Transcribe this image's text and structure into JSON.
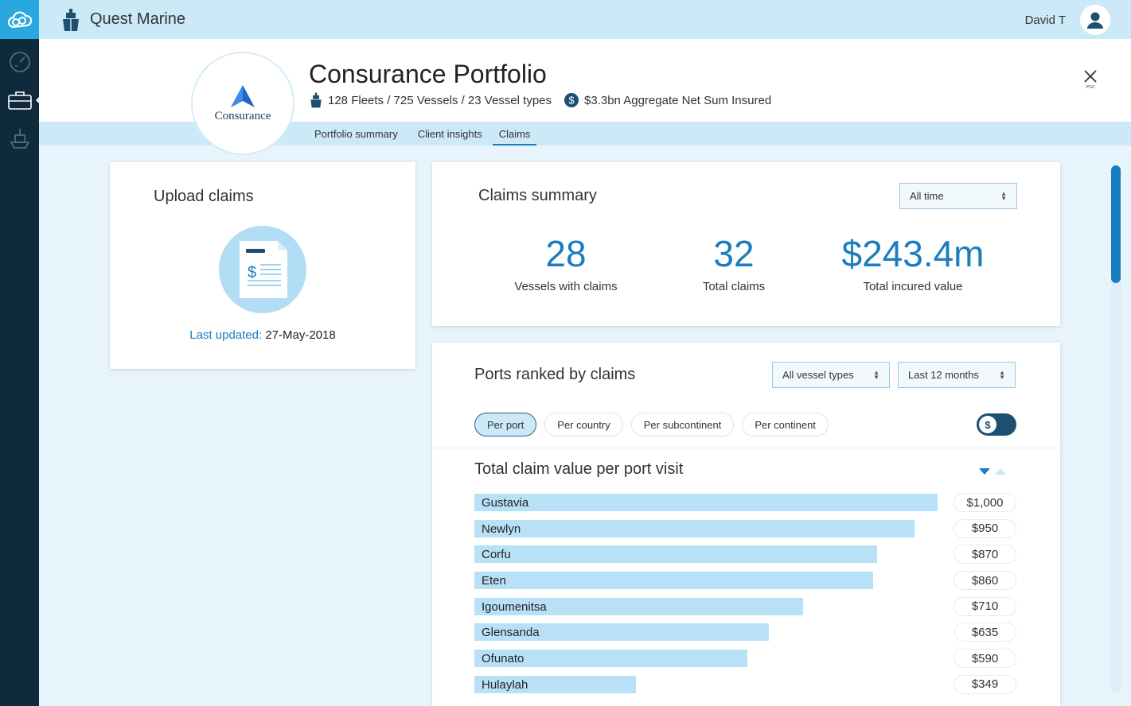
{
  "app": {
    "brand_name": "Quest Marine",
    "user_name": "David T"
  },
  "portfolio": {
    "client_logo_text": "Consurance",
    "title": "Consurance Portfolio",
    "fleet_stats": "128 Fleets / 725 Vessels / 23 Vessel types",
    "sum_insured": "$3.3bn Aggregate Net Sum Insured",
    "close_hint": "esc"
  },
  "tabs": [
    {
      "label": "Portfolio summary",
      "active": false
    },
    {
      "label": "Client insights",
      "active": false
    },
    {
      "label": "Claims",
      "active": true
    }
  ],
  "upload": {
    "title": "Upload claims",
    "last_updated_label": "Last updated:",
    "last_updated_value": "27-May-2018"
  },
  "summary": {
    "title": "Claims summary",
    "period_select": "All time",
    "stats": [
      {
        "value": "28",
        "label": "Vessels with claims"
      },
      {
        "value": "32",
        "label": "Total claims"
      },
      {
        "value": "$243.4m",
        "label": "Total incured value"
      }
    ]
  },
  "ports": {
    "title": "Ports ranked by claims",
    "vessel_select": "All vessel types",
    "period_select": "Last 12 months",
    "pills": [
      {
        "label": "Per port",
        "active": true
      },
      {
        "label": "Per country",
        "active": false
      },
      {
        "label": "Per subcontinent",
        "active": false
      },
      {
        "label": "Per continent",
        "active": false
      }
    ],
    "toggle_symbol": "$",
    "subtitle": "Total claim value per port visit",
    "rows": [
      {
        "port": "Gustavia",
        "value": 1000,
        "display": "$1,000"
      },
      {
        "port": "Newlyn",
        "value": 950,
        "display": "$950"
      },
      {
        "port": "Corfu",
        "value": 870,
        "display": "$870"
      },
      {
        "port": "Eten",
        "value": 860,
        "display": "$860"
      },
      {
        "port": "Igoumenitsa",
        "value": 710,
        "display": "$710"
      },
      {
        "port": "Glensanda",
        "value": 635,
        "display": "$635"
      },
      {
        "port": "Ofunato",
        "value": 590,
        "display": "$590"
      },
      {
        "port": "Hulaylah",
        "value": 349,
        "display": "$349"
      }
    ]
  },
  "colors": {
    "accent": "#1a7dbf",
    "bar": "#b8e1f7",
    "sidebar": "#0f2a3d",
    "topbar": "#cce9f8"
  }
}
